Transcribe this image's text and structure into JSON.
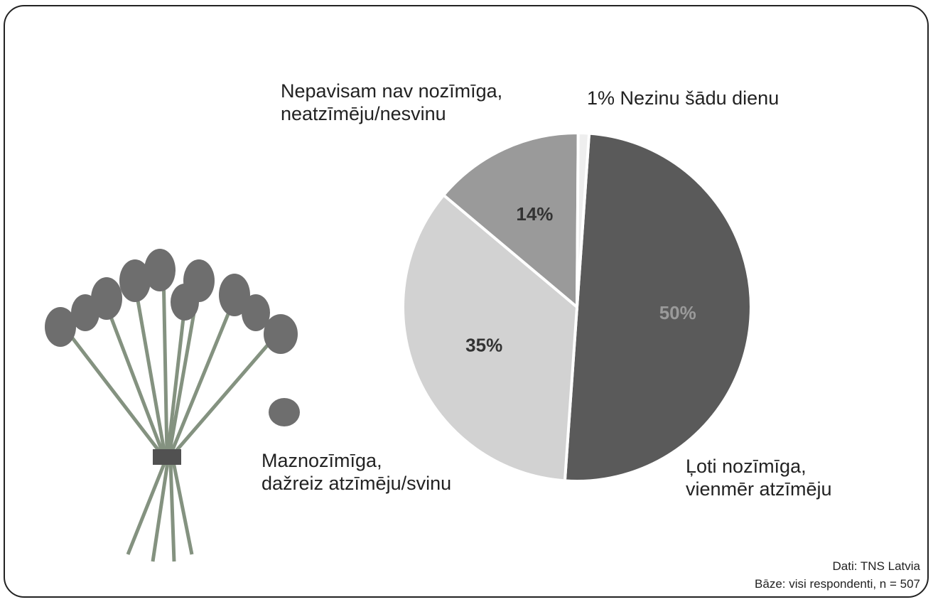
{
  "chart_data": {
    "type": "pie",
    "categories": [
      "Ļoti nozīmīga,\nvienmēr atzīmēju",
      "Maznozīmīga,\ndažreiz atzīmēju/svinu",
      "Nepavisam nav nozīmīga,\nneatzīmēju/nesvinu",
      "Nezinu šādu dienu"
    ],
    "values": [
      50,
      35,
      14,
      1
    ],
    "value_labels": [
      "50%",
      "35%",
      "14%",
      "1%"
    ],
    "colors": [
      "#5a5a5a",
      "#d2d2d2",
      "#9a9a9a",
      "#eeeeee"
    ],
    "source": "Dati: TNS Latvia",
    "base": "Bāze: visi respondenti, n = 507"
  }
}
